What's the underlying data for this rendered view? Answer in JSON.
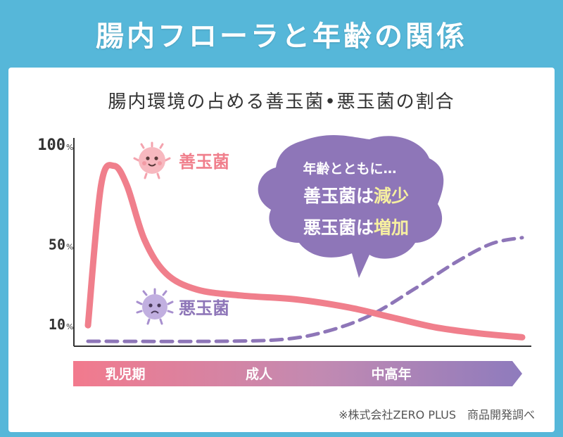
{
  "header": {
    "title": "腸内フローラと年齢の関係"
  },
  "source": "※株式会社ZERO PLUS　商品開発調べ",
  "colors": {
    "good": "#f07f8c",
    "bad": "#8e76b8",
    "header_bg": "#56b7d9",
    "bubble": "#8e76b8",
    "highlight": "#f7f0a0"
  },
  "icons": {
    "good": "smiling-bacteria-icon",
    "bad": "frowning-bacteria-icon"
  },
  "chart_data": {
    "type": "line",
    "title": "腸内環境の占める善玉菌•悪玉菌の割合",
    "y_ticks": [
      {
        "value": 100,
        "label": "100",
        "unit": "%"
      },
      {
        "value": 50,
        "label": "50",
        "unit": "%"
      },
      {
        "value": 10,
        "label": "10",
        "unit": "%"
      }
    ],
    "x_stages": [
      "乳児期",
      "成人",
      "中高年"
    ],
    "series": [
      {
        "name": "善玉菌",
        "style": "solid",
        "points": [
          [
            0.0,
            12
          ],
          [
            0.03,
            82
          ],
          [
            0.06,
            92
          ],
          [
            0.09,
            82
          ],
          [
            0.13,
            55
          ],
          [
            0.18,
            38
          ],
          [
            0.25,
            30
          ],
          [
            0.35,
            27
          ],
          [
            0.48,
            25
          ],
          [
            0.6,
            21
          ],
          [
            0.7,
            16
          ],
          [
            0.8,
            11
          ],
          [
            0.9,
            8
          ],
          [
            1.0,
            6
          ]
        ]
      },
      {
        "name": "悪玉菌",
        "style": "dashed",
        "points": [
          [
            0.0,
            4
          ],
          [
            0.3,
            4
          ],
          [
            0.45,
            5
          ],
          [
            0.55,
            9
          ],
          [
            0.65,
            17
          ],
          [
            0.75,
            30
          ],
          [
            0.85,
            44
          ],
          [
            0.93,
            53
          ],
          [
            1.0,
            56
          ]
        ]
      }
    ],
    "annotation": {
      "line1": "年齢とともに…",
      "line2_prefix": "善玉菌は",
      "line2_highlight": "減少",
      "line3_prefix": "悪玉菌は",
      "line3_highlight": "増加"
    }
  }
}
